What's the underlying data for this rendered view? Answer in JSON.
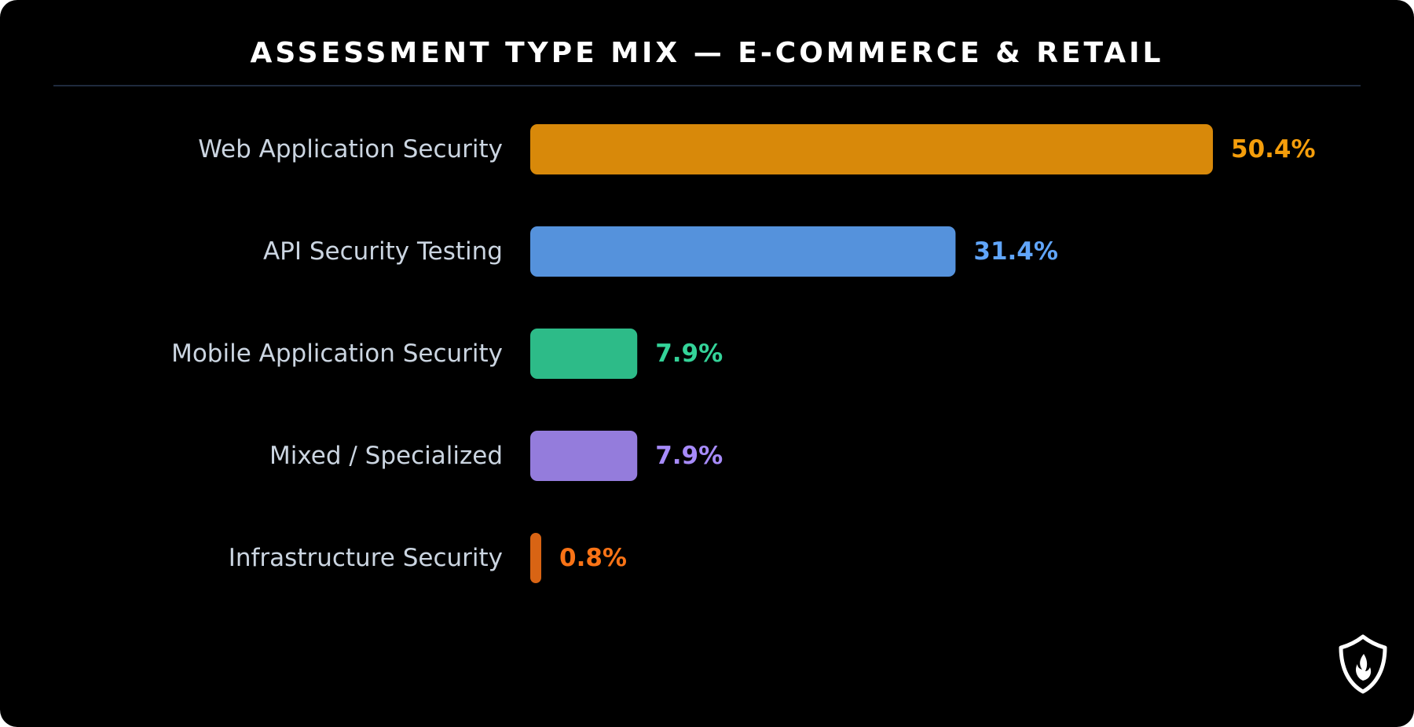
{
  "chart_data": {
    "type": "bar",
    "orientation": "horizontal",
    "title": "ASSESSMENT TYPE MIX — E-COMMERCE & RETAIL",
    "categories": [
      "Web Application Security",
      "API Security Testing",
      "Mobile Application Security",
      "Mixed / Specialized",
      "Infrastructure Security"
    ],
    "values": [
      50.4,
      31.4,
      7.9,
      7.9,
      0.8
    ],
    "value_labels": [
      "50.4%",
      "31.4%",
      "7.9%",
      "7.9%",
      "0.8%"
    ],
    "xlim": [
      0,
      50.4
    ],
    "grid": false,
    "legend": "none",
    "bar_colors": [
      "#d8890a",
      "#5592dc",
      "#2dbb88",
      "#947cdc",
      "#d86414"
    ],
    "label_colors": [
      "#f59e0b",
      "#60a5fa",
      "#34d399",
      "#a78bfa",
      "#f97316"
    ]
  },
  "logo": {
    "icon": "shield-flame-icon"
  }
}
